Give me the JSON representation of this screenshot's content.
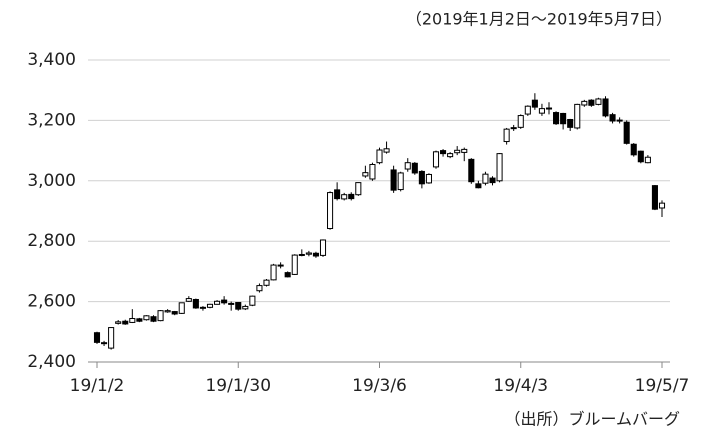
{
  "chart_data": {
    "type": "candlestick",
    "title": "（2019年1月2日～2019年5月7日）",
    "source": "（出所）ブルームバーグ",
    "categories": [
      "19/1/2",
      null,
      null,
      null,
      null,
      null,
      null,
      null,
      null,
      null,
      null,
      null,
      null,
      null,
      null,
      null,
      null,
      null,
      null,
      null,
      "19/1/30",
      null,
      null,
      null,
      null,
      null,
      null,
      null,
      null,
      null,
      null,
      null,
      null,
      null,
      null,
      null,
      null,
      null,
      null,
      null,
      "19/3/6",
      null,
      null,
      null,
      null,
      null,
      null,
      null,
      null,
      null,
      null,
      null,
      null,
      null,
      null,
      null,
      null,
      null,
      null,
      null,
      "19/4/3",
      null,
      null,
      null,
      null,
      null,
      null,
      null,
      null,
      null,
      null,
      null,
      null,
      null,
      null,
      null,
      null,
      null,
      null,
      null,
      "19/5/7"
    ],
    "open": [
      2497,
      2461,
      2446,
      2528,
      2535,
      2531,
      2543,
      2540,
      2550,
      2537,
      2566,
      2567,
      2561,
      2601,
      2607,
      2578,
      2581,
      2591,
      2605,
      2592,
      2597,
      2576,
      2588,
      2636,
      2654,
      2672,
      2721,
      2696,
      2690,
      2756,
      2757,
      2760,
      2753,
      2842,
      2970,
      2940,
      2955,
      2954,
      3016,
      3006,
      3060,
      3095,
      3036,
      2971,
      3039,
      3058,
      3031,
      2993,
      3046,
      3100,
      3080,
      3093,
      3094,
      3071,
      2990,
      2992,
      3009,
      3000,
      3130,
      3174,
      3177,
      3221,
      3267,
      3224,
      3240,
      3226,
      3223,
      3203,
      3175,
      3251,
      3267,
      3253,
      3271,
      3219,
      3198,
      3194,
      3121,
      3098,
      3060,
      2984,
      2910
    ],
    "high": [
      2500,
      2470,
      2515,
      2539,
      2540,
      2575,
      2546,
      2555,
      2555,
      2572,
      2575,
      2569,
      2597,
      2618,
      2610,
      2585,
      2593,
      2605,
      2618,
      2600,
      2598,
      2590,
      2620,
      2660,
      2675,
      2725,
      2730,
      2700,
      2757,
      2773,
      2768,
      2765,
      2806,
      2965,
      2995,
      2960,
      2962,
      2995,
      3050,
      3060,
      3110,
      3130,
      3050,
      3030,
      3075,
      3062,
      3035,
      3025,
      3100,
      3105,
      3095,
      3115,
      3110,
      3075,
      3000,
      3030,
      3015,
      3092,
      3175,
      3185,
      3220,
      3250,
      3290,
      3255,
      3260,
      3230,
      3225,
      3205,
      3255,
      3268,
      3270,
      3275,
      3280,
      3225,
      3210,
      3200,
      3125,
      3100,
      3085,
      2986,
      2935
    ],
    "low": [
      2460,
      2453,
      2441,
      2524,
      2523,
      2529,
      2532,
      2537,
      2532,
      2535,
      2563,
      2555,
      2559,
      2599,
      2576,
      2570,
      2578,
      2590,
      2590,
      2570,
      2570,
      2572,
      2585,
      2630,
      2650,
      2670,
      2710,
      2680,
      2688,
      2750,
      2750,
      2745,
      2748,
      2838,
      2935,
      2935,
      2935,
      2950,
      3010,
      3000,
      3055,
      3090,
      2960,
      2965,
      3030,
      3020,
      2975,
      2990,
      3040,
      3080,
      3075,
      3085,
      3065,
      2990,
      2975,
      2985,
      2985,
      2995,
      3120,
      3165,
      3172,
      3215,
      3235,
      3215,
      3220,
      3185,
      3170,
      3165,
      3170,
      3245,
      3245,
      3250,
      3210,
      3190,
      3190,
      3120,
      3080,
      3058,
      3058,
      2903,
      2880
    ],
    "close": [
      2465,
      2464,
      2514,
      2533,
      2526,
      2544,
      2535,
      2553,
      2535,
      2570,
      2570,
      2559,
      2596,
      2610,
      2579,
      2581,
      2591,
      2601,
      2596,
      2594,
      2575,
      2584,
      2618,
      2653,
      2671,
      2721,
      2719,
      2682,
      2754,
      2755,
      2761,
      2751,
      2804,
      2961,
      2941,
      2954,
      2941,
      2994,
      3027,
      3054,
      3102,
      3106,
      2969,
      3026,
      3060,
      3026,
      2990,
      3021,
      3096,
      3090,
      3090,
      3101,
      3104,
      2997,
      2977,
      3022,
      2994,
      3090,
      3171,
      3176,
      3216,
      3247,
      3244,
      3239,
      3241,
      3189,
      3189,
      3177,
      3253,
      3263,
      3250,
      3271,
      3215,
      3198,
      3201,
      3124,
      3086,
      3063,
      3078,
      2906,
      2926
    ],
    "up_color": "#ffffff",
    "down_color": "#000000",
    "ylim": [
      2400,
      3400
    ],
    "yticks": [
      {
        "value": 2400,
        "label": "2,400"
      },
      {
        "value": 2600,
        "label": "2,600"
      },
      {
        "value": 2800,
        "label": "2,800"
      },
      {
        "value": 3000,
        "label": "3,000"
      },
      {
        "value": 3200,
        "label": "3,200"
      },
      {
        "value": 3400,
        "label": "3,400"
      }
    ],
    "grid": true
  }
}
